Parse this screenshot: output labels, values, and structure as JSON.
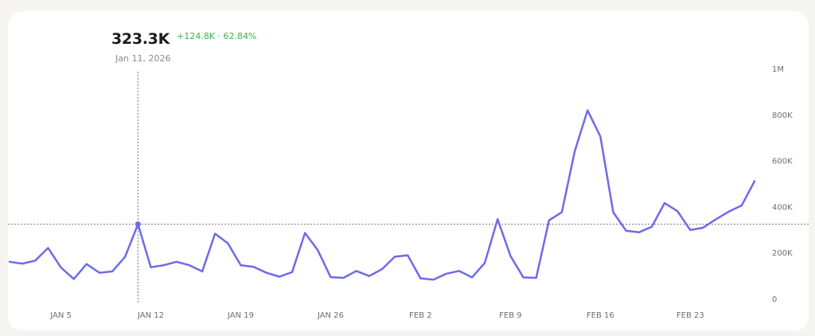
{
  "tooltip": {
    "value": "323.3K",
    "delta": "+124.8K · 62.84%",
    "date": "Jan 11, 2026"
  },
  "colors": {
    "line": "#6e6be8",
    "delta": "#3bb54a",
    "crosshair": "#7a7a7a"
  },
  "chart_data": {
    "type": "line",
    "x_tick_labels": [
      "JAN 5",
      "JAN 12",
      "JAN 19",
      "JAN 26",
      "FEB 2",
      "FEB 9",
      "FEB 16",
      "FEB 23"
    ],
    "y_tick_labels": [
      "0",
      "200K",
      "400K",
      "600K",
      "800K",
      "1M"
    ],
    "ylim": [
      0,
      1000000
    ],
    "grid": false,
    "hover_index": 10,
    "series": [
      {
        "values": [
          160000,
          152000,
          165000,
          220000,
          135000,
          85000,
          150000,
          112000,
          118000,
          182000,
          323300,
          136000,
          145000,
          160000,
          145000,
          118000,
          282000,
          240000,
          145000,
          138000,
          112000,
          95000,
          115000,
          285000,
          210000,
          93000,
          90000,
          120000,
          98000,
          128000,
          182000,
          188000,
          88000,
          82000,
          108000,
          120000,
          92000,
          155000,
          345000,
          185000,
          92000,
          90000,
          340000,
          375000,
          640000,
          818000,
          705000,
          375000,
          295000,
          288000,
          312000,
          415000,
          380000,
          298000,
          308000,
          345000,
          378000,
          405000,
          510000
        ]
      }
    ]
  }
}
